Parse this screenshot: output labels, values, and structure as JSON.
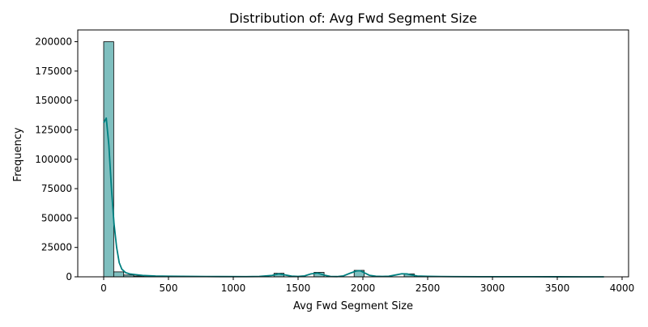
{
  "chart_data": {
    "type": "bar",
    "title": "Distribution of: Avg Fwd Segment Size",
    "xlabel": "Avg Fwd Segment Size",
    "ylabel": "Frequency",
    "xlim": [
      -200,
      4050
    ],
    "ylim": [
      0,
      210000
    ],
    "xticks": [
      0,
      500,
      1000,
      1500,
      2000,
      2500,
      3000,
      3500,
      4000
    ],
    "yticks": [
      0,
      25000,
      50000,
      75000,
      100000,
      125000,
      150000,
      175000,
      200000
    ],
    "grid": false,
    "legend": "none",
    "bin_width": 77.3,
    "bins": [
      {
        "x0": 0.0,
        "count": 200000
      },
      {
        "x0": 77.3,
        "count": 4200
      },
      {
        "x0": 154.6,
        "count": 1500
      },
      {
        "x0": 231.9,
        "count": 700
      },
      {
        "x0": 309.2,
        "count": 300
      },
      {
        "x0": 386.5,
        "count": 200
      },
      {
        "x0": 463.8,
        "count": 150
      },
      {
        "x0": 1314.1,
        "count": 3000
      },
      {
        "x0": 1623.3,
        "count": 3800
      },
      {
        "x0": 1932.5,
        "count": 5500
      },
      {
        "x0": 2318.9,
        "count": 2500
      }
    ],
    "kde": {
      "x": [
        0,
        20,
        40,
        60,
        80,
        100,
        120,
        140,
        170,
        200,
        250,
        300,
        400,
        500,
        700,
        900,
        1100,
        1200,
        1300,
        1350,
        1400,
        1450,
        1500,
        1550,
        1600,
        1650,
        1700,
        1750,
        1800,
        1850,
        1900,
        1950,
        1980,
        2010,
        2050,
        2100,
        2150,
        2200,
        2250,
        2300,
        2340,
        2380,
        2420,
        2500,
        2600,
        2700,
        2900,
        3100,
        3300,
        3500,
        3700,
        3860
      ],
      "y": [
        131000,
        135000,
        112000,
        75000,
        45000,
        25000,
        12000,
        6500,
        3500,
        2500,
        1800,
        1200,
        700,
        500,
        300,
        200,
        150,
        300,
        1200,
        2500,
        1600,
        600,
        300,
        800,
        2500,
        3200,
        1500,
        300,
        200,
        800,
        3000,
        5000,
        5200,
        3500,
        1300,
        500,
        300,
        500,
        1500,
        2600,
        2500,
        1500,
        700,
        400,
        250,
        150,
        100,
        80,
        60,
        40,
        20,
        10
      ]
    },
    "colors": {
      "bar_fill": "#7fbfbf",
      "bar_edge": "#000000",
      "kde_line": "#008080"
    }
  }
}
